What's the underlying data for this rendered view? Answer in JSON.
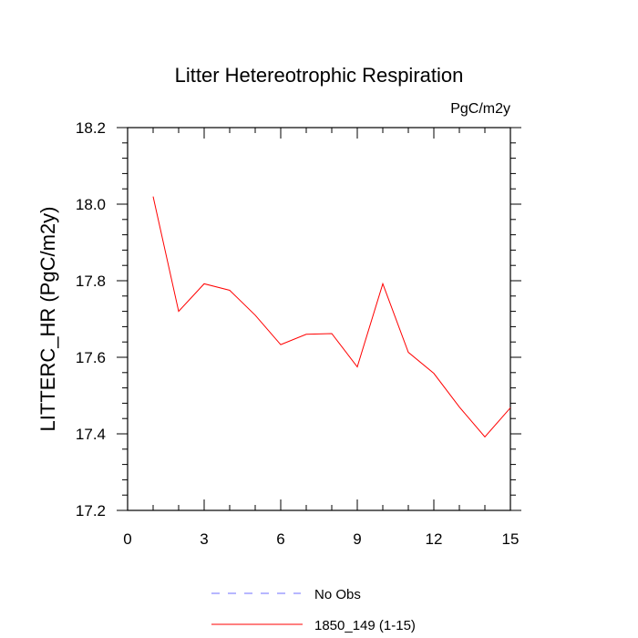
{
  "colors": {
    "series": "#ff0000",
    "no_obs": "#6f6fff",
    "axis": "#000000"
  },
  "chart_data": {
    "type": "line",
    "title": "Litter Hetereotrophic Respiration",
    "units_label": "PgC/m2y",
    "xlabel": "",
    "ylabel": "LITTERC_HR  (PgC/m2y)",
    "xlim": [
      0,
      15
    ],
    "ylim": [
      17.2,
      18.2
    ],
    "x_ticks": [
      0,
      3,
      6,
      9,
      12,
      15
    ],
    "x_tick_labels": [
      "0",
      "3",
      "6",
      "9",
      "12",
      "15"
    ],
    "y_ticks": [
      17.2,
      17.4,
      17.6,
      17.8,
      18.0,
      18.2
    ],
    "y_tick_labels": [
      "17.2",
      "17.4",
      "17.6",
      "17.8",
      "18.0",
      "18.2"
    ],
    "legend": [
      {
        "label": "No Obs",
        "style": "dashed",
        "color": "#6f6fff"
      },
      {
        "label": "1850_149 (1-15)",
        "style": "solid",
        "color": "#ff0000"
      }
    ],
    "legend_placement": "bottom-center",
    "series": [
      {
        "name": "1850_149 (1-15)",
        "x": [
          1,
          2,
          3,
          4,
          5,
          6,
          7,
          8,
          9,
          10,
          11,
          12,
          13,
          14,
          15
        ],
        "values": [
          18.02,
          17.72,
          17.792,
          17.775,
          17.71,
          17.633,
          17.66,
          17.662,
          17.575,
          17.792,
          17.613,
          17.558,
          17.47,
          17.392,
          17.468
        ]
      }
    ]
  }
}
